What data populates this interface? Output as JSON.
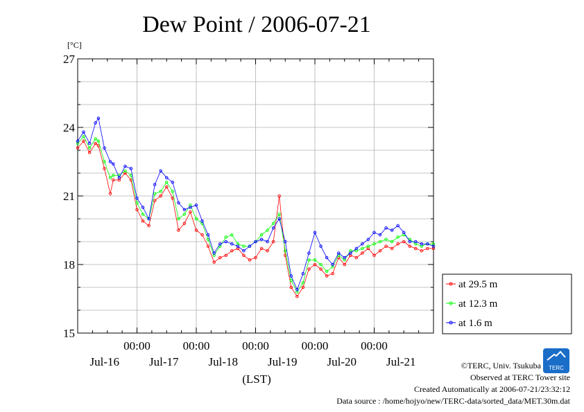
{
  "chart_data": {
    "type": "line",
    "title": "Dew Point / 2006-07-21",
    "ylabel": "[°C]",
    "xlabel": "(LST)",
    "ylim": [
      15,
      27
    ],
    "yticks": [
      15,
      18,
      21,
      24,
      27
    ],
    "xlim": [
      0,
      6
    ],
    "x_unit": "days from 2006-07-15 12:00 LST",
    "x_tick_top_labels": [
      "00:00",
      "00:00",
      "00:00",
      "00:00",
      "00:00"
    ],
    "x_day_labels": [
      "Jul-16",
      "Jul-17",
      "Jul-18",
      "Jul-19",
      "Jul-20",
      "Jul-21"
    ],
    "grid": true,
    "legend_position": "right",
    "series": [
      {
        "name": "at 29.5 m",
        "color": "#ff0000",
        "x": [
          0.0,
          0.1,
          0.2,
          0.3,
          0.35,
          0.45,
          0.55,
          0.6,
          0.7,
          0.8,
          0.9,
          1.0,
          1.1,
          1.2,
          1.3,
          1.4,
          1.5,
          1.6,
          1.7,
          1.8,
          1.9,
          2.0,
          2.1,
          2.2,
          2.3,
          2.4,
          2.5,
          2.6,
          2.7,
          2.8,
          2.9,
          3.0,
          3.1,
          3.2,
          3.3,
          3.4,
          3.5,
          3.6,
          3.7,
          3.8,
          3.9,
          4.0,
          4.1,
          4.2,
          4.3,
          4.4,
          4.5,
          4.6,
          4.7,
          4.8,
          4.9,
          5.0,
          5.1,
          5.2,
          5.3,
          5.4,
          5.5,
          5.6,
          5.7,
          5.8,
          5.9,
          6.0
        ],
        "y": [
          23.1,
          23.4,
          22.9,
          23.3,
          23.2,
          22.2,
          21.1,
          21.7,
          21.7,
          22.0,
          21.7,
          20.4,
          19.9,
          19.7,
          20.8,
          21.0,
          21.4,
          20.9,
          19.5,
          19.8,
          20.3,
          19.5,
          19.3,
          18.8,
          18.1,
          18.3,
          18.4,
          18.6,
          18.7,
          18.4,
          18.2,
          18.3,
          18.7,
          18.6,
          19.0,
          21.0,
          18.4,
          17.0,
          16.6,
          17.0,
          17.8,
          18.0,
          17.8,
          17.5,
          17.6,
          18.3,
          18.0,
          18.4,
          18.3,
          18.5,
          18.7,
          18.4,
          18.6,
          18.8,
          18.7,
          18.9,
          19.0,
          18.8,
          18.7,
          18.6,
          18.7,
          18.7
        ]
      },
      {
        "name": "at 12.3 m",
        "color": "#00ff00",
        "x": [
          0.0,
          0.1,
          0.2,
          0.3,
          0.35,
          0.45,
          0.55,
          0.6,
          0.7,
          0.8,
          0.9,
          1.0,
          1.1,
          1.2,
          1.3,
          1.4,
          1.5,
          1.6,
          1.7,
          1.8,
          1.9,
          2.0,
          2.1,
          2.2,
          2.3,
          2.4,
          2.5,
          2.6,
          2.7,
          2.8,
          2.9,
          3.0,
          3.1,
          3.2,
          3.3,
          3.4,
          3.5,
          3.6,
          3.7,
          3.8,
          3.9,
          4.0,
          4.1,
          4.2,
          4.3,
          4.4,
          4.5,
          4.6,
          4.7,
          4.8,
          4.9,
          5.0,
          5.1,
          5.2,
          5.3,
          5.4,
          5.5,
          5.6,
          5.7,
          5.8,
          5.9,
          6.0
        ],
        "y": [
          23.3,
          23.6,
          23.1,
          23.5,
          23.4,
          22.5,
          21.8,
          21.9,
          21.9,
          22.1,
          21.9,
          20.7,
          20.2,
          20.0,
          21.1,
          21.2,
          21.6,
          21.2,
          20.0,
          20.2,
          20.6,
          20.0,
          19.8,
          19.1,
          18.4,
          18.8,
          19.2,
          19.3,
          18.9,
          18.8,
          18.8,
          19.0,
          19.3,
          19.5,
          19.8,
          20.2,
          18.6,
          17.3,
          16.8,
          17.2,
          18.2,
          18.2,
          18.0,
          17.7,
          17.9,
          18.4,
          18.2,
          18.6,
          18.6,
          18.7,
          18.8,
          18.9,
          19.0,
          19.1,
          19.0,
          19.2,
          19.3,
          19.1,
          18.9,
          18.8,
          18.9,
          18.9
        ]
      },
      {
        "name": "at 1.6 m",
        "color": "#0000ff",
        "x": [
          0.0,
          0.1,
          0.2,
          0.3,
          0.35,
          0.45,
          0.55,
          0.6,
          0.7,
          0.8,
          0.9,
          1.0,
          1.1,
          1.2,
          1.3,
          1.4,
          1.5,
          1.6,
          1.7,
          1.8,
          1.9,
          2.0,
          2.1,
          2.2,
          2.3,
          2.4,
          2.5,
          2.6,
          2.7,
          2.8,
          2.9,
          3.0,
          3.1,
          3.2,
          3.3,
          3.4,
          3.5,
          3.6,
          3.7,
          3.8,
          3.9,
          4.0,
          4.1,
          4.2,
          4.3,
          4.4,
          4.5,
          4.6,
          4.7,
          4.8,
          4.9,
          5.0,
          5.1,
          5.2,
          5.3,
          5.4,
          5.5,
          5.6,
          5.7,
          5.8,
          5.9,
          6.0
        ],
        "y": [
          23.4,
          23.8,
          23.3,
          24.2,
          24.4,
          23.1,
          22.5,
          22.4,
          21.8,
          22.3,
          22.2,
          20.9,
          20.5,
          20.0,
          21.5,
          22.1,
          21.8,
          21.6,
          20.7,
          20.4,
          20.5,
          20.6,
          19.9,
          19.3,
          18.5,
          18.9,
          19.0,
          18.9,
          18.8,
          18.6,
          18.8,
          19.0,
          19.1,
          19.0,
          19.6,
          20.0,
          19.0,
          17.5,
          16.9,
          17.6,
          18.5,
          19.4,
          18.8,
          18.3,
          18.0,
          18.5,
          18.3,
          18.5,
          18.7,
          18.9,
          19.1,
          19.4,
          19.3,
          19.6,
          19.5,
          19.7,
          19.4,
          19.0,
          19.0,
          18.9,
          18.9,
          18.8
        ]
      }
    ]
  },
  "footer": {
    "copyright": "©TERC, Univ. Tsukuba",
    "site": "Observed at TERC Tower site",
    "created": "Created Automatically at 2006-07-21/23:32:12",
    "source": "Data source : /home/hojyo/new/TERC-data/sorted_data/MET.30m.dat"
  },
  "logo": {
    "text": "TERC",
    "color": "#1a6ec8"
  }
}
